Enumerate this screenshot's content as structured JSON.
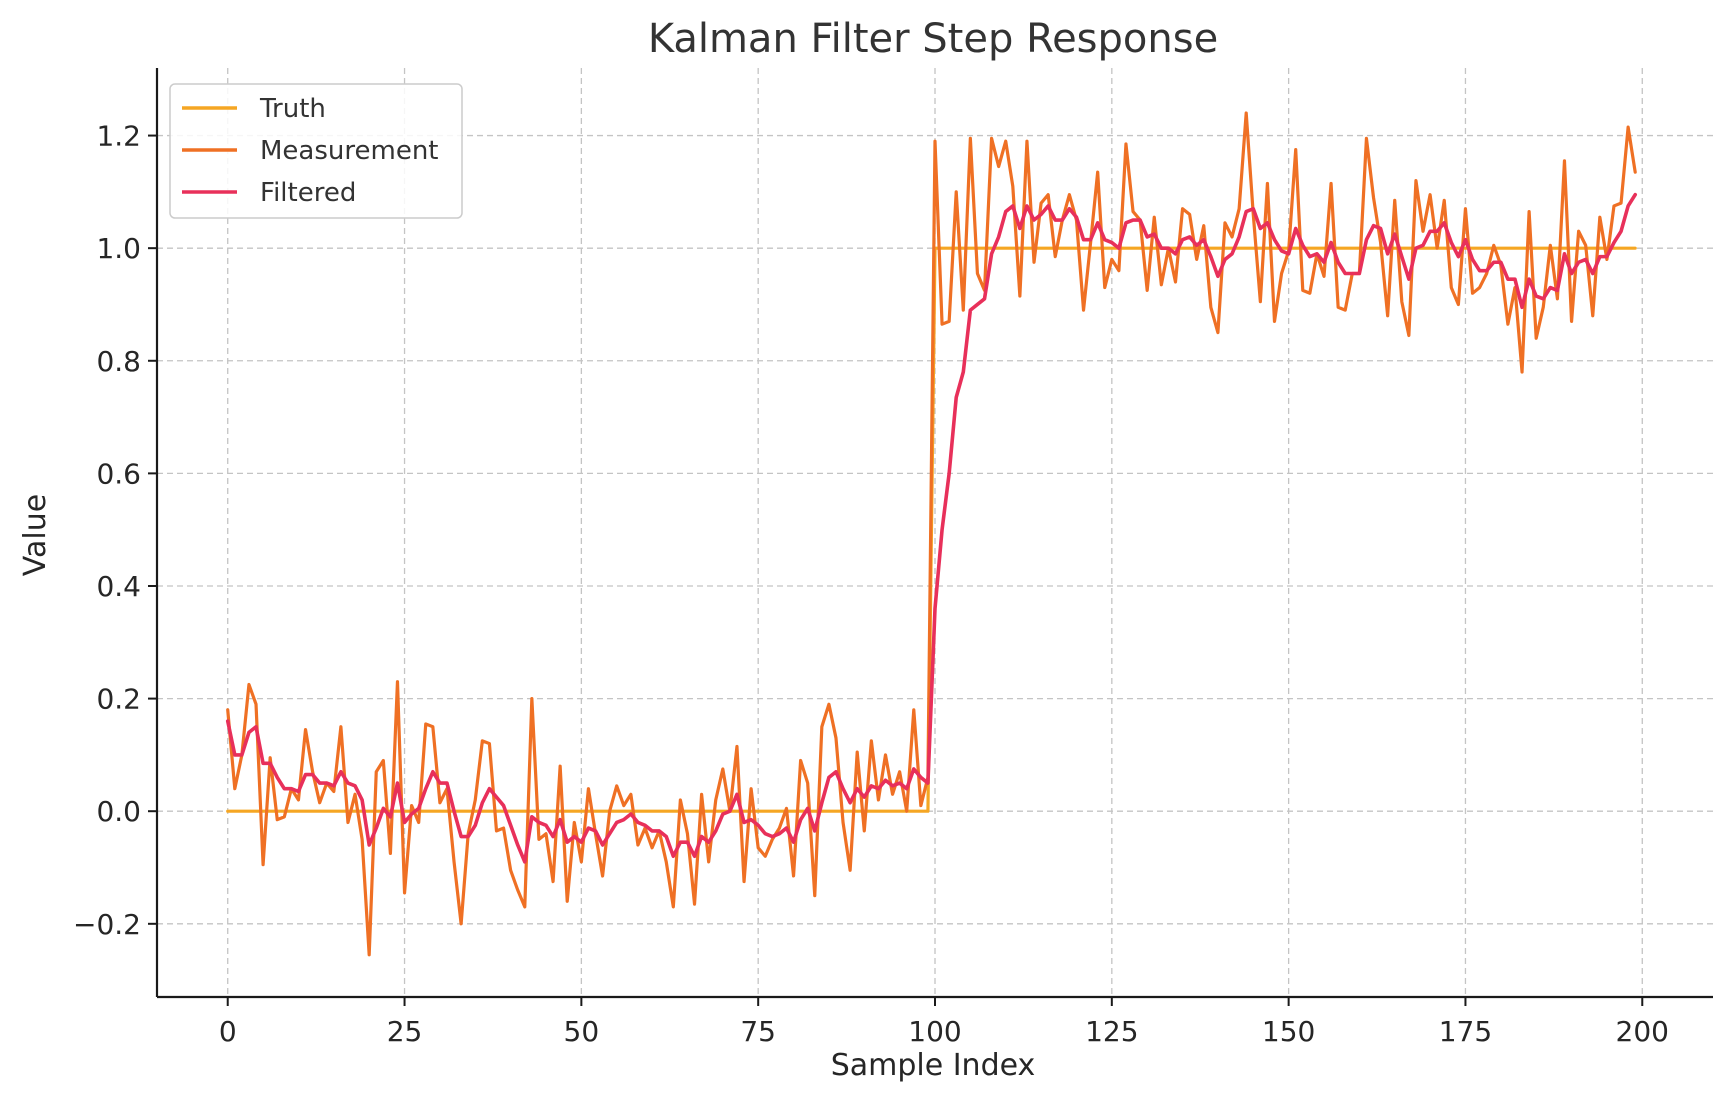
{
  "chart_data": {
    "type": "line",
    "title": "Kalman Filter Step Response",
    "xlabel": "Sample Index",
    "ylabel": "Value",
    "xlim": [
      -10,
      210
    ],
    "ylim": [
      -0.33,
      1.32
    ],
    "xticks": [
      0,
      25,
      50,
      75,
      100,
      125,
      150,
      175,
      200
    ],
    "xtick_labels": [
      "0",
      "25",
      "50",
      "75",
      "100",
      "125",
      "150",
      "175",
      "200"
    ],
    "yticks": [
      -0.2,
      0.0,
      0.2,
      0.4,
      0.6,
      0.8,
      1.0,
      1.2
    ],
    "ytick_labels": [
      "−0.2",
      "0.0",
      "0.2",
      "0.4",
      "0.6",
      "0.8",
      "1.0",
      "1.2"
    ],
    "grid": true,
    "legend_position": "upper-left",
    "series": [
      {
        "name": "Truth",
        "color": "#f5a623",
        "x": [
          0,
          99,
          100,
          199
        ],
        "y": [
          0.0,
          0.0,
          1.0,
          1.0
        ]
      },
      {
        "name": "Measurement",
        "color": "#ef7024",
        "x": [
          0,
          1,
          2,
          3,
          4,
          5,
          6,
          7,
          8,
          9,
          10,
          11,
          12,
          13,
          14,
          15,
          16,
          17,
          18,
          19,
          20,
          21,
          22,
          23,
          24,
          25,
          26,
          27,
          28,
          29,
          30,
          31,
          32,
          33,
          34,
          35,
          36,
          37,
          38,
          39,
          40,
          41,
          42,
          43,
          44,
          45,
          46,
          47,
          48,
          49,
          50,
          51,
          52,
          53,
          54,
          55,
          56,
          57,
          58,
          59,
          60,
          61,
          62,
          63,
          64,
          65,
          66,
          67,
          68,
          69,
          70,
          71,
          72,
          73,
          74,
          75,
          76,
          77,
          78,
          79,
          80,
          81,
          82,
          83,
          84,
          85,
          86,
          87,
          88,
          89,
          90,
          91,
          92,
          93,
          94,
          95,
          96,
          97,
          98,
          99,
          100,
          101,
          102,
          103,
          104,
          105,
          106,
          107,
          108,
          109,
          110,
          111,
          112,
          113,
          114,
          115,
          116,
          117,
          118,
          119,
          120,
          121,
          122,
          123,
          124,
          125,
          126,
          127,
          128,
          129,
          130,
          131,
          132,
          133,
          134,
          135,
          136,
          137,
          138,
          139,
          140,
          141,
          142,
          143,
          144,
          145,
          146,
          147,
          148,
          149,
          150,
          151,
          152,
          153,
          154,
          155,
          156,
          157,
          158,
          159,
          160,
          161,
          162,
          163,
          164,
          165,
          166,
          167,
          168,
          169,
          170,
          171,
          172,
          173,
          174,
          175,
          176,
          177,
          178,
          179,
          180,
          181,
          182,
          183,
          184,
          185,
          186,
          187,
          188,
          189,
          190,
          191,
          192,
          193,
          194,
          195,
          196,
          197,
          198,
          199
        ],
        "y": [
          0.18,
          0.04,
          0.1,
          0.225,
          0.19,
          -0.095,
          0.095,
          -0.015,
          -0.01,
          0.04,
          0.02,
          0.145,
          0.07,
          0.015,
          0.05,
          0.035,
          0.15,
          -0.02,
          0.03,
          -0.05,
          -0.255,
          0.07,
          0.09,
          -0.075,
          0.23,
          -0.145,
          0.01,
          -0.02,
          0.155,
          0.15,
          0.015,
          0.04,
          -0.09,
          -0.2,
          -0.04,
          0.02,
          0.125,
          0.12,
          -0.035,
          -0.03,
          -0.105,
          -0.14,
          -0.17,
          0.2,
          -0.05,
          -0.04,
          -0.125,
          0.08,
          -0.16,
          -0.02,
          -0.09,
          0.04,
          -0.04,
          -0.115,
          0.0,
          0.045,
          0.01,
          0.03,
          -0.06,
          -0.03,
          -0.065,
          -0.035,
          -0.09,
          -0.17,
          0.02,
          -0.04,
          -0.165,
          0.03,
          -0.09,
          0.02,
          0.075,
          0.0,
          0.115,
          -0.125,
          0.04,
          -0.065,
          -0.08,
          -0.05,
          -0.03,
          0.005,
          -0.115,
          0.09,
          0.05,
          -0.15,
          0.15,
          0.19,
          0.13,
          -0.02,
          -0.105,
          0.105,
          -0.035,
          0.125,
          0.02,
          0.1,
          0.03,
          0.07,
          0.0,
          0.18,
          0.01,
          0.06,
          1.19,
          0.865,
          0.87,
          1.1,
          0.89,
          1.195,
          0.955,
          0.925,
          1.195,
          1.145,
          1.19,
          1.11,
          0.915,
          1.19,
          0.975,
          1.08,
          1.095,
          0.985,
          1.05,
          1.095,
          1.05,
          0.89,
          1.01,
          1.135,
          0.93,
          0.98,
          0.96,
          1.185,
          1.065,
          1.05,
          0.925,
          1.055,
          0.935,
          1.0,
          0.94,
          1.07,
          1.06,
          0.98,
          1.04,
          0.895,
          0.85,
          1.045,
          1.02,
          1.07,
          1.24,
          1.06,
          0.905,
          1.115,
          0.87,
          0.955,
          0.995,
          1.175,
          0.925,
          0.92,
          0.99,
          0.95,
          1.115,
          0.895,
          0.89,
          0.955,
          0.955,
          1.195,
          1.09,
          1.01,
          0.88,
          1.085,
          0.905,
          0.845,
          1.12,
          1.03,
          1.095,
          1.0,
          1.085,
          0.93,
          0.9,
          1.07,
          0.92,
          0.93,
          0.955,
          1.005,
          0.97,
          0.865,
          0.93,
          0.78,
          1.065,
          0.84,
          0.895,
          1.005,
          0.91,
          1.155,
          0.87,
          1.03,
          1.005,
          0.88,
          1.055,
          0.98,
          1.075,
          1.08,
          1.215,
          1.135
        ]
      },
      {
        "name": "Filtered",
        "color": "#e8305a",
        "x": [
          0,
          1,
          2,
          3,
          4,
          5,
          6,
          7,
          8,
          9,
          10,
          11,
          12,
          13,
          14,
          15,
          16,
          17,
          18,
          19,
          20,
          21,
          22,
          23,
          24,
          25,
          26,
          27,
          28,
          29,
          30,
          31,
          32,
          33,
          34,
          35,
          36,
          37,
          38,
          39,
          40,
          41,
          42,
          43,
          44,
          45,
          46,
          47,
          48,
          49,
          50,
          51,
          52,
          53,
          54,
          55,
          56,
          57,
          58,
          59,
          60,
          61,
          62,
          63,
          64,
          65,
          66,
          67,
          68,
          69,
          70,
          71,
          72,
          73,
          74,
          75,
          76,
          77,
          78,
          79,
          80,
          81,
          82,
          83,
          84,
          85,
          86,
          87,
          88,
          89,
          90,
          91,
          92,
          93,
          94,
          95,
          96,
          97,
          98,
          99,
          100,
          101,
          102,
          103,
          104,
          105,
          106,
          107,
          108,
          109,
          110,
          111,
          112,
          113,
          114,
          115,
          116,
          117,
          118,
          119,
          120,
          121,
          122,
          123,
          124,
          125,
          126,
          127,
          128,
          129,
          130,
          131,
          132,
          133,
          134,
          135,
          136,
          137,
          138,
          139,
          140,
          141,
          142,
          143,
          144,
          145,
          146,
          147,
          148,
          149,
          150,
          151,
          152,
          153,
          154,
          155,
          156,
          157,
          158,
          159,
          160,
          161,
          162,
          163,
          164,
          165,
          166,
          167,
          168,
          169,
          170,
          171,
          172,
          173,
          174,
          175,
          176,
          177,
          178,
          179,
          180,
          181,
          182,
          183,
          184,
          185,
          186,
          187,
          188,
          189,
          190,
          191,
          192,
          193,
          194,
          195,
          196,
          197,
          198,
          199
        ],
        "y": [
          0.16,
          0.1,
          0.1,
          0.14,
          0.15,
          0.085,
          0.085,
          0.06,
          0.04,
          0.04,
          0.035,
          0.065,
          0.065,
          0.05,
          0.05,
          0.045,
          0.07,
          0.05,
          0.045,
          0.02,
          -0.06,
          -0.03,
          0.005,
          -0.01,
          0.05,
          -0.02,
          -0.005,
          0.005,
          0.04,
          0.07,
          0.05,
          0.05,
          0.0,
          -0.045,
          -0.045,
          -0.025,
          0.015,
          0.04,
          0.025,
          0.01,
          -0.025,
          -0.06,
          -0.09,
          -0.01,
          -0.02,
          -0.025,
          -0.045,
          -0.015,
          -0.055,
          -0.045,
          -0.055,
          -0.03,
          -0.035,
          -0.06,
          -0.04,
          -0.02,
          -0.015,
          -0.005,
          -0.02,
          -0.025,
          -0.035,
          -0.035,
          -0.045,
          -0.08,
          -0.055,
          -0.055,
          -0.08,
          -0.045,
          -0.055,
          -0.035,
          -0.005,
          0.0,
          0.03,
          -0.02,
          -0.015,
          -0.025,
          -0.04,
          -0.045,
          -0.04,
          -0.03,
          -0.055,
          -0.015,
          0.005,
          -0.035,
          0.015,
          0.06,
          0.07,
          0.04,
          0.015,
          0.04,
          0.025,
          0.045,
          0.04,
          0.055,
          0.045,
          0.05,
          0.04,
          0.075,
          0.06,
          0.05,
          0.36,
          0.5,
          0.6,
          0.735,
          0.78,
          0.89,
          0.9,
          0.91,
          0.99,
          1.02,
          1.065,
          1.075,
          1.035,
          1.075,
          1.05,
          1.06,
          1.075,
          1.05,
          1.05,
          1.07,
          1.055,
          1.015,
          1.015,
          1.045,
          1.015,
          1.01,
          1.0,
          1.045,
          1.05,
          1.05,
          1.02,
          1.025,
          1.0,
          1.0,
          0.99,
          1.015,
          1.02,
          1.005,
          1.015,
          0.985,
          0.95,
          0.98,
          0.99,
          1.02,
          1.065,
          1.07,
          1.035,
          1.045,
          1.015,
          0.995,
          0.99,
          1.035,
          1.005,
          0.985,
          0.99,
          0.975,
          1.01,
          0.975,
          0.955,
          0.955,
          0.955,
          1.015,
          1.04,
          1.035,
          0.99,
          1.025,
          0.985,
          0.945,
          1.0,
          1.005,
          1.03,
          1.03,
          1.045,
          1.01,
          0.985,
          1.015,
          0.98,
          0.96,
          0.96,
          0.975,
          0.975,
          0.945,
          0.945,
          0.895,
          0.945,
          0.915,
          0.91,
          0.93,
          0.925,
          0.99,
          0.955,
          0.975,
          0.98,
          0.955,
          0.985,
          0.985,
          1.01,
          1.03,
          1.075,
          1.095
        ]
      }
    ]
  }
}
